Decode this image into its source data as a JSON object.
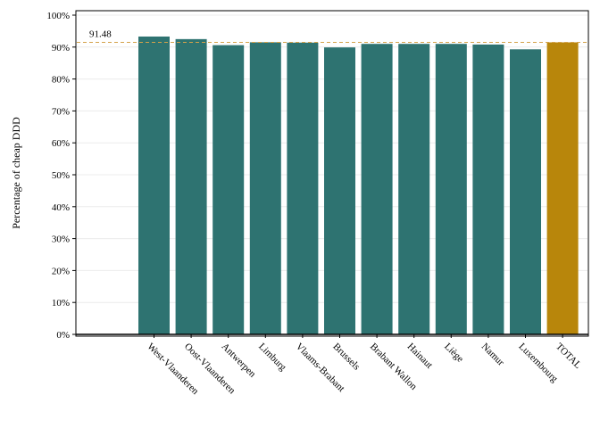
{
  "chart_data": {
    "type": "bar",
    "ylabel": "Percentage of cheap DDD",
    "xlabel": "",
    "ylim": [
      0,
      100
    ],
    "y_ticks": [
      0,
      10,
      20,
      30,
      40,
      50,
      60,
      70,
      80,
      90,
      100
    ],
    "y_tick_labels": [
      "0%",
      "10%",
      "20%",
      "30%",
      "40%",
      "50%",
      "60%",
      "70%",
      "80%",
      "90%",
      "100%"
    ],
    "categories": [
      "West-Vlaanderen",
      "Oost-Vlaanderen",
      "Antwerpen",
      "Limburg",
      "Vlaams-Brabant",
      "Brussels",
      "Brabant Wallon",
      "Hainaut",
      "Liège",
      "Namur",
      "Luxembourg",
      "TOTAL"
    ],
    "values": [
      93.3,
      92.5,
      90.6,
      91.5,
      91.4,
      89.9,
      91.0,
      91.0,
      91.0,
      90.8,
      89.3,
      91.48
    ],
    "highlight_category": "TOTAL",
    "reference_line": {
      "value": 91.48,
      "label": "91.48"
    },
    "colors": {
      "bar": "#2e7371",
      "highlight": "#b8860b",
      "reference": "#d4a24a",
      "grid": "#ececec"
    },
    "grid": true,
    "legend": "none"
  }
}
